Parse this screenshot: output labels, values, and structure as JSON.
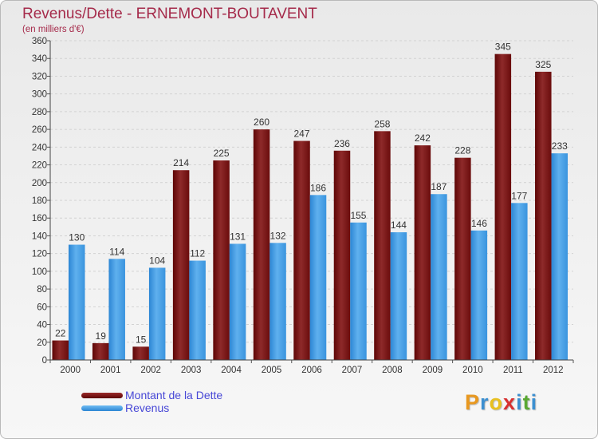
{
  "header": {
    "title": "Revenus/Dette - ERNEMONT-BOUTAVENT",
    "subtitle": "(en milliers d'€)"
  },
  "legend": {
    "items": [
      {
        "label": "Montant de la Dette",
        "color": "#7a0f0f"
      },
      {
        "label": "Revenus",
        "color": "#3e9be3"
      }
    ]
  },
  "logo": {
    "letters": [
      "P",
      "r",
      "o",
      "x",
      "i",
      "t",
      "i"
    ],
    "colors": [
      "#e89820",
      "#3c8fd0",
      "#e8c020",
      "#d83030",
      "#3c8fd0",
      "#5aa832",
      "#3c8fd0"
    ]
  },
  "chart_data": {
    "type": "bar",
    "title": "Revenus/Dette - ERNEMONT-BOUTAVENT",
    "subtitle": "(en milliers d'€)",
    "categories": [
      "2000",
      "2001",
      "2002",
      "2003",
      "2004",
      "2005",
      "2006",
      "2007",
      "2008",
      "2009",
      "2010",
      "2011",
      "2012"
    ],
    "series": [
      {
        "name": "Montant de la Dette",
        "values": [
          22,
          19,
          15,
          214,
          225,
          260,
          247,
          236,
          258,
          242,
          228,
          345,
          325
        ],
        "color": "#7a0f0f"
      },
      {
        "name": "Revenus",
        "values": [
          130,
          114,
          104,
          112,
          131,
          132,
          186,
          155,
          144,
          187,
          146,
          177,
          233
        ],
        "color": "#3e9be3"
      }
    ],
    "ylim": [
      0,
      360
    ],
    "yticks": [
      0,
      20,
      40,
      60,
      80,
      100,
      120,
      140,
      160,
      180,
      200,
      220,
      240,
      260,
      280,
      300,
      320,
      340,
      360
    ],
    "grid": true,
    "legend_position": "bottom-left"
  }
}
